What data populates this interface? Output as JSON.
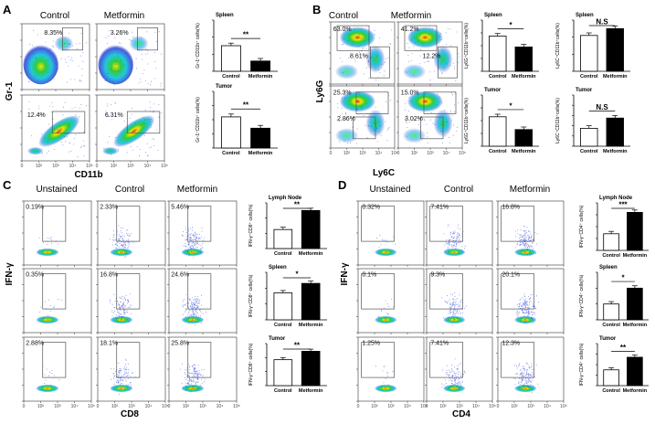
{
  "figure": {
    "panel_labels": [
      "A",
      "B",
      "C",
      "D"
    ],
    "A": {
      "columns": [
        "Control",
        "Metformin"
      ],
      "ylabel": "Gr-1",
      "xlabel": "CD11b",
      "percents": [
        "8.35%",
        "3.26%",
        "12.4%",
        "6.31%"
      ]
    },
    "B": {
      "columns": [
        "Control",
        "Metformin"
      ],
      "ylabel": "Ly6G",
      "xlabel": "Ly6C",
      "percents": [
        "63.0%",
        "8.61%",
        "41.2%",
        "12.2%",
        "25.3%",
        "2.86%",
        "15.0%",
        "3.02%"
      ]
    },
    "C": {
      "columns": [
        "Unstained",
        "Control",
        "Metformin"
      ],
      "ylabel": "IFN-γ",
      "xlabel": "CD8",
      "percents": [
        "0.19%",
        "2.33%",
        "5.46%",
        "0.35%",
        "16.8%",
        "24.6%",
        "2.88%",
        "18.1%",
        "25.8%"
      ]
    },
    "D": {
      "columns": [
        "Unstained",
        "Control",
        "Metformin"
      ],
      "ylabel": "IFN-γ",
      "xlabel": "CD4",
      "percents": [
        "0.32%",
        "7.41%",
        "16.8%",
        "0.1%",
        "9.3%",
        "20.1%",
        "1.25%",
        "7.41%",
        "12.3%"
      ]
    },
    "flow_ticks": [
      "0",
      "10²",
      "10³",
      "10⁴",
      "10⁵"
    ]
  },
  "chart_data": [
    {
      "id": "A1",
      "type": "bar",
      "title": "Spleen",
      "ylabel": "Gr-1⁺CD11b⁺ cells(%)",
      "categories": [
        "Control",
        "Metformin"
      ],
      "values": [
        7.5,
        3.0
      ],
      "ylim": [
        0,
        15
      ],
      "ticks": [
        0,
        5,
        10,
        15
      ],
      "sig": "**"
    },
    {
      "id": "A2",
      "type": "bar",
      "title": "Tumor",
      "ylabel": "Gr-1⁺CD11b⁺ cells(%)",
      "categories": [
        "Control",
        "Metformin"
      ],
      "values": [
        11.0,
        7.0
      ],
      "ylim": [
        0,
        20
      ],
      "ticks": [
        0,
        5,
        10,
        15,
        20
      ],
      "sig": "**"
    },
    {
      "id": "B1",
      "type": "bar",
      "title": "Spleen",
      "ylabel": "Ly6G⁺CD11b⁺cells(%)",
      "categories": [
        "Control",
        "Metformin"
      ],
      "values": [
        55,
        38
      ],
      "ylim": [
        0,
        80
      ],
      "ticks": [
        0,
        20,
        40,
        60,
        80
      ],
      "sig": "*"
    },
    {
      "id": "B2",
      "type": "bar",
      "title": "Spleen",
      "ylabel": "Ly6C⁺CD11b⁺cells(%)",
      "categories": [
        "Control",
        "Metformin"
      ],
      "values": [
        10.5,
        12.5
      ],
      "ylim": [
        0,
        15
      ],
      "ticks": [
        0,
        5,
        10,
        15
      ],
      "sig": "N.S"
    },
    {
      "id": "B3",
      "type": "bar",
      "title": "Tumor",
      "ylabel": "Ly6G⁺CD11b⁺cells(%)",
      "categories": [
        "Control",
        "Metformin"
      ],
      "values": [
        23,
        13
      ],
      "ylim": [
        0,
        40
      ],
      "ticks": [
        0,
        10,
        20,
        30,
        40
      ],
      "sig": "*"
    },
    {
      "id": "B4",
      "type": "bar",
      "title": "Tumor",
      "ylabel": "Ly6C⁺CD11b⁺cells(%)",
      "categories": [
        "Control",
        "Metformin"
      ],
      "values": [
        3.5,
        5.5
      ],
      "ylim": [
        0,
        10
      ],
      "ticks": [
        0,
        2,
        4,
        6,
        8,
        10
      ],
      "sig": "N.S"
    },
    {
      "id": "C1",
      "type": "bar",
      "title": "Lymph Node",
      "ylabel": "IFN-γ⁺CD8⁺ cells(%)",
      "categories": [
        "Control",
        "Metformin"
      ],
      "values": [
        2.5,
        5.0
      ],
      "ylim": [
        0,
        6
      ],
      "ticks": [
        0,
        2,
        4,
        6
      ],
      "sig": "**"
    },
    {
      "id": "C2",
      "type": "bar",
      "title": "Spleen",
      "ylabel": "IFN-γ⁺CD8⁺ cells(%)",
      "categories": [
        "Control",
        "Metformin"
      ],
      "values": [
        17,
        23
      ],
      "ylim": [
        0,
        30
      ],
      "ticks": [
        0,
        10,
        20,
        30
      ],
      "sig": "*"
    },
    {
      "id": "C3",
      "type": "bar",
      "title": "Tumor",
      "ylabel": "IFN-γ⁺CD8⁺ cells(%)",
      "categories": [
        "Control",
        "Metformin"
      ],
      "values": [
        18.5,
        24.5
      ],
      "ylim": [
        0,
        30
      ],
      "ticks": [
        0,
        10,
        20,
        30
      ],
      "sig": "**"
    },
    {
      "id": "D1",
      "type": "bar",
      "title": "Lymph Node",
      "ylabel": "IFN-γ⁺CD4⁺ cells(%)",
      "categories": [
        "Control",
        "Metformin"
      ],
      "values": [
        7,
        16
      ],
      "ylim": [
        0,
        20
      ],
      "ticks": [
        0,
        5,
        10,
        15,
        20
      ],
      "sig": "***"
    },
    {
      "id": "D2",
      "type": "bar",
      "title": "Spleen",
      "ylabel": "IFN-γ⁺CD4⁺ cells(%)",
      "categories": [
        "Control",
        "Metformin"
      ],
      "values": [
        10,
        20
      ],
      "ylim": [
        0,
        30
      ],
      "ticks": [
        0,
        10,
        20,
        30
      ],
      "sig": "*"
    },
    {
      "id": "D3",
      "type": "bar",
      "title": "Tumor",
      "ylabel": "IFN-γ⁺CD4⁺ cells(%)",
      "categories": [
        "Control",
        "Metformin"
      ],
      "values": [
        7.5,
        13.5
      ],
      "ylim": [
        0,
        20
      ],
      "ticks": [
        0,
        5,
        10,
        15,
        20
      ],
      "sig": "**"
    }
  ],
  "colors": {
    "control_fill": "#ffffff",
    "metformin_fill": "#000000",
    "gate": "#555555",
    "flow_blue": "#2a3fd8",
    "flow_cyan": "#22c7e0",
    "flow_green": "#2ecc40",
    "flow_yellow": "#f2e600",
    "flow_red": "#e82a1a"
  }
}
